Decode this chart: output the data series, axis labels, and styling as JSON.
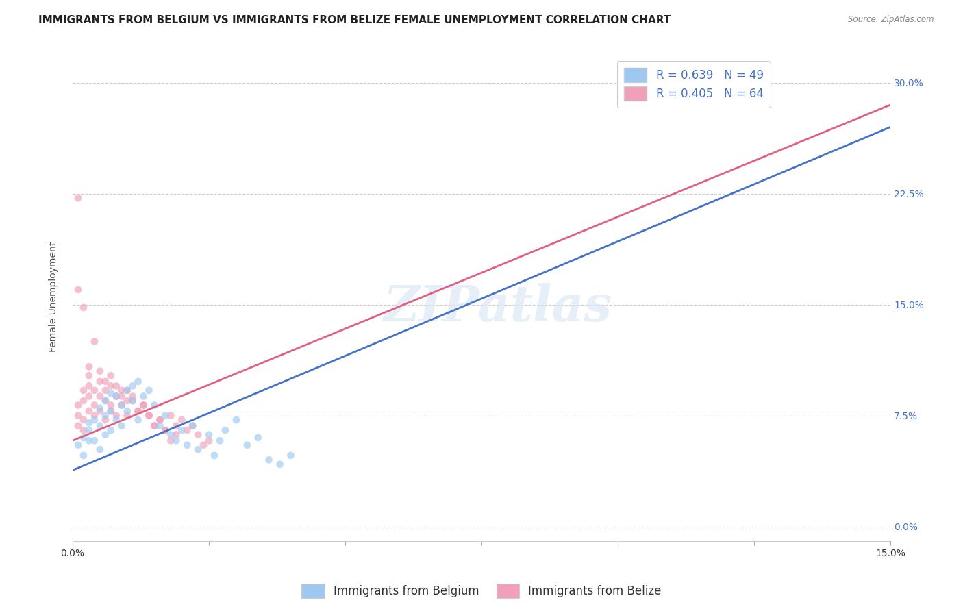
{
  "title": "IMMIGRANTS FROM BELGIUM VS IMMIGRANTS FROM BELIZE FEMALE UNEMPLOYMENT CORRELATION CHART",
  "source": "Source: ZipAtlas.com",
  "ylabel": "Female Unemployment",
  "xlim": [
    0.0,
    0.15
  ],
  "ylim": [
    -0.01,
    0.32
  ],
  "xticks": [
    0.0,
    0.025,
    0.05,
    0.075,
    0.1,
    0.125,
    0.15
  ],
  "xtick_labels": [
    "0.0%",
    "",
    "",
    "",
    "",
    "",
    "15.0%"
  ],
  "yticks_right": [
    0.0,
    0.075,
    0.15,
    0.225,
    0.3
  ],
  "ytick_labels_right": [
    "0.0%",
    "7.5%",
    "15.0%",
    "22.5%",
    "30.0%"
  ],
  "legend_entries": [
    {
      "label": "R = 0.639   N = 49",
      "color": "#aec6e8"
    },
    {
      "label": "R = 0.405   N = 64",
      "color": "#f4b8c1"
    }
  ],
  "legend_bottom": [
    {
      "label": "Immigrants from Belgium",
      "color": "#aec6e8"
    },
    {
      "label": "Immigrants from Belize",
      "color": "#f4b8c1"
    }
  ],
  "belgium_scatter": [
    [
      0.001,
      0.055
    ],
    [
      0.002,
      0.06
    ],
    [
      0.002,
      0.048
    ],
    [
      0.003,
      0.065
    ],
    [
      0.003,
      0.058
    ],
    [
      0.003,
      0.07
    ],
    [
      0.004,
      0.072
    ],
    [
      0.004,
      0.058
    ],
    [
      0.005,
      0.08
    ],
    [
      0.005,
      0.068
    ],
    [
      0.005,
      0.052
    ],
    [
      0.006,
      0.085
    ],
    [
      0.006,
      0.075
    ],
    [
      0.006,
      0.062
    ],
    [
      0.007,
      0.09
    ],
    [
      0.007,
      0.078
    ],
    [
      0.007,
      0.065
    ],
    [
      0.008,
      0.088
    ],
    [
      0.008,
      0.072
    ],
    [
      0.009,
      0.082
    ],
    [
      0.009,
      0.068
    ],
    [
      0.01,
      0.092
    ],
    [
      0.01,
      0.078
    ],
    [
      0.011,
      0.095
    ],
    [
      0.011,
      0.085
    ],
    [
      0.012,
      0.098
    ],
    [
      0.012,
      0.072
    ],
    [
      0.013,
      0.088
    ],
    [
      0.014,
      0.092
    ],
    [
      0.015,
      0.082
    ],
    [
      0.016,
      0.068
    ],
    [
      0.017,
      0.075
    ],
    [
      0.018,
      0.062
    ],
    [
      0.019,
      0.058
    ],
    [
      0.02,
      0.065
    ],
    [
      0.021,
      0.055
    ],
    [
      0.022,
      0.068
    ],
    [
      0.023,
      0.052
    ],
    [
      0.025,
      0.062
    ],
    [
      0.026,
      0.048
    ],
    [
      0.027,
      0.058
    ],
    [
      0.028,
      0.065
    ],
    [
      0.03,
      0.072
    ],
    [
      0.032,
      0.055
    ],
    [
      0.034,
      0.06
    ],
    [
      0.036,
      0.045
    ],
    [
      0.038,
      0.042
    ],
    [
      0.04,
      0.048
    ],
    [
      0.12,
      0.295
    ]
  ],
  "belize_scatter": [
    [
      0.001,
      0.068
    ],
    [
      0.001,
      0.075
    ],
    [
      0.001,
      0.082
    ],
    [
      0.002,
      0.072
    ],
    [
      0.002,
      0.065
    ],
    [
      0.002,
      0.085
    ],
    [
      0.002,
      0.092
    ],
    [
      0.003,
      0.078
    ],
    [
      0.003,
      0.088
    ],
    [
      0.003,
      0.095
    ],
    [
      0.003,
      0.102
    ],
    [
      0.004,
      0.082
    ],
    [
      0.004,
      0.075
    ],
    [
      0.004,
      0.092
    ],
    [
      0.005,
      0.088
    ],
    [
      0.005,
      0.078
    ],
    [
      0.005,
      0.098
    ],
    [
      0.006,
      0.085
    ],
    [
      0.006,
      0.092
    ],
    [
      0.006,
      0.072
    ],
    [
      0.007,
      0.095
    ],
    [
      0.007,
      0.082
    ],
    [
      0.007,
      0.078
    ],
    [
      0.008,
      0.088
    ],
    [
      0.008,
      0.075
    ],
    [
      0.009,
      0.092
    ],
    [
      0.009,
      0.082
    ],
    [
      0.01,
      0.085
    ],
    [
      0.01,
      0.075
    ],
    [
      0.011,
      0.088
    ],
    [
      0.012,
      0.078
    ],
    [
      0.013,
      0.082
    ],
    [
      0.014,
      0.075
    ],
    [
      0.015,
      0.068
    ],
    [
      0.016,
      0.072
    ],
    [
      0.017,
      0.065
    ],
    [
      0.018,
      0.075
    ],
    [
      0.019,
      0.068
    ],
    [
      0.02,
      0.072
    ],
    [
      0.021,
      0.065
    ],
    [
      0.022,
      0.068
    ],
    [
      0.023,
      0.062
    ],
    [
      0.024,
      0.055
    ],
    [
      0.025,
      0.058
    ],
    [
      0.001,
      0.16
    ],
    [
      0.002,
      0.148
    ],
    [
      0.004,
      0.125
    ],
    [
      0.001,
      0.222
    ],
    [
      0.003,
      0.108
    ],
    [
      0.005,
      0.105
    ],
    [
      0.006,
      0.098
    ],
    [
      0.007,
      0.102
    ],
    [
      0.008,
      0.095
    ],
    [
      0.009,
      0.088
    ],
    [
      0.01,
      0.092
    ],
    [
      0.011,
      0.085
    ],
    [
      0.012,
      0.078
    ],
    [
      0.013,
      0.082
    ],
    [
      0.014,
      0.075
    ],
    [
      0.015,
      0.068
    ],
    [
      0.016,
      0.072
    ],
    [
      0.017,
      0.065
    ],
    [
      0.018,
      0.058
    ],
    [
      0.019,
      0.062
    ]
  ],
  "belgium_line": [
    [
      0.0,
      0.038
    ],
    [
      0.15,
      0.27
    ]
  ],
  "belize_line": [
    [
      0.0,
      0.058
    ],
    [
      0.15,
      0.285
    ]
  ],
  "watermark": "ZIPatlas",
  "background_color": "#ffffff",
  "scatter_alpha": 0.65,
  "scatter_size": 60,
  "belgium_color": "#9ec8f0",
  "belize_color": "#f0a0b8",
  "belgium_line_color": "#4472c4",
  "belize_line_color": "#e06080",
  "grid_color": "#cccccc",
  "title_fontsize": 11,
  "axis_label_fontsize": 10,
  "tick_fontsize": 10
}
